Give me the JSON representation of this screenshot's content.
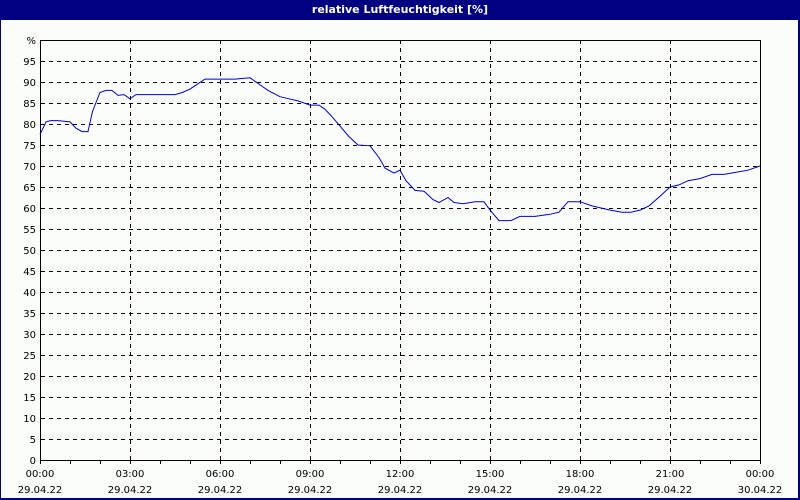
{
  "window": {
    "title": "relative Luftfeuchtigkeit [%]"
  },
  "colors": {
    "titlebar": "#000080",
    "line": "#0000cc",
    "grid": "#000000",
    "background": "#fbfdfb"
  },
  "chart_data": {
    "type": "line",
    "title": "relative Luftfeuchtigkeit [%]",
    "xlabel": "",
    "ylabel": "%",
    "ylim": [
      0,
      100
    ],
    "y_ticks": [
      "0",
      "5",
      "10",
      "15",
      "20",
      "25",
      "30",
      "35",
      "40",
      "45",
      "50",
      "55",
      "60",
      "65",
      "70",
      "75",
      "80",
      "85",
      "90",
      "95",
      "%"
    ],
    "x_ticks": [
      {
        "time": "00:00",
        "date": "29.04.22"
      },
      {
        "time": "03:00",
        "date": "29.04.22"
      },
      {
        "time": "06:00",
        "date": "29.04.22"
      },
      {
        "time": "09:00",
        "date": "29.04.22"
      },
      {
        "time": "12:00",
        "date": "29.04.22"
      },
      {
        "time": "15:00",
        "date": "29.04.22"
      },
      {
        "time": "18:00",
        "date": "29.04.22"
      },
      {
        "time": "21:00",
        "date": "29.04.22"
      },
      {
        "time": "00:00",
        "date": "30.04.22"
      }
    ],
    "grid": true,
    "legend": "none",
    "series": [
      {
        "name": "relative Luftfeuchtigkeit",
        "x_hours": [
          0,
          0.2,
          0.35,
          0.6,
          1.0,
          1.2,
          1.4,
          1.6,
          1.75,
          2.0,
          2.2,
          2.4,
          2.6,
          2.8,
          3.0,
          3.2,
          3.5,
          4.0,
          4.5,
          4.75,
          5.0,
          5.25,
          5.5,
          6.0,
          6.5,
          7.0,
          7.3,
          7.6,
          8.0,
          8.3,
          8.6,
          9.0,
          9.3,
          9.5,
          9.7,
          10.0,
          10.3,
          10.6,
          11.0,
          11.3,
          11.5,
          11.8,
          12.0,
          12.2,
          12.5,
          12.8,
          13.1,
          13.3,
          13.6,
          13.8,
          14.1,
          14.5,
          14.8,
          15.0,
          15.3,
          15.7,
          16.0,
          16.5,
          17.0,
          17.3,
          17.6,
          18.0,
          18.4,
          18.7,
          19.0,
          19.4,
          19.7,
          20.0,
          20.3,
          20.7,
          21.0,
          21.3,
          21.6,
          22.0,
          22.4,
          22.8,
          23.2,
          23.6,
          24.0
        ],
        "values": [
          77.5,
          80.5,
          80.8,
          80.8,
          80.5,
          79.0,
          78.2,
          78.2,
          83.0,
          87.5,
          88.0,
          88.0,
          86.8,
          87.0,
          86.0,
          87.0,
          87.0,
          87.0,
          87.0,
          87.5,
          88.3,
          89.5,
          90.7,
          90.7,
          90.7,
          91.0,
          89.5,
          88.0,
          86.5,
          86.0,
          85.5,
          84.5,
          84.5,
          83.5,
          82.0,
          79.5,
          77.0,
          75.0,
          74.8,
          72.0,
          69.5,
          68.3,
          69.0,
          66.5,
          64.2,
          64.0,
          62.0,
          61.3,
          62.5,
          61.3,
          61.0,
          61.5,
          61.5,
          59.5,
          57.0,
          57.0,
          58.0,
          58.0,
          58.5,
          59.0,
          61.5,
          61.5,
          60.5,
          60.0,
          59.5,
          59.0,
          59.0,
          59.5,
          60.5,
          63.0,
          65.0,
          65.5,
          66.5,
          67.0,
          68.0,
          68.0,
          68.5,
          69.0,
          70.0
        ]
      }
    ]
  }
}
